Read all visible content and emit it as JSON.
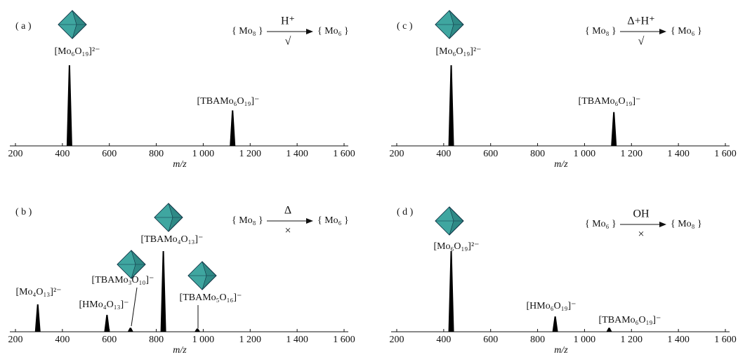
{
  "chart_data": [
    {
      "type": "spectrum",
      "panel": "( a )",
      "scheme": {
        "from": "{ Mo₈ }",
        "above": "H⁺",
        "below": "√",
        "to": "{ Mo₆ }"
      },
      "x": [
        430,
        1125
      ],
      "values": [
        100,
        44
      ],
      "labels": [
        "[Mo₆O₁₉]²⁻",
        "[TBAMo₆O₁₉]⁻"
      ],
      "xlim": [
        200,
        1600
      ],
      "ylim": [
        0,
        100
      ],
      "xlabel": "m/z",
      "xticks": [
        200,
        400,
        600,
        800,
        {
          "value": 1000,
          "label": "1 000"
        },
        {
          "value": 1200,
          "label": "1 200"
        },
        {
          "value": 1400,
          "label": "1 400"
        },
        {
          "value": 1600,
          "label": "1 600"
        }
      ]
    },
    {
      "type": "spectrum",
      "panel": "( b )",
      "scheme": {
        "from": "{ Mo₈ }",
        "above": "Δ",
        "below": "×",
        "to": "{ Mo₆ }"
      },
      "x": [
        295,
        590,
        690,
        830,
        975
      ],
      "values": [
        34,
        21,
        5,
        100,
        4
      ],
      "labels": [
        "[Mo₄O₁₃]²⁻",
        "[HMo₄O₁₃]⁻",
        "[TBAMo₃O₁₀]⁻",
        "[TBAMo₄O₁₃]⁻",
        "[TBAMo₅O₁₆]⁻"
      ],
      "xlim": [
        200,
        1600
      ],
      "ylim": [
        0,
        100
      ],
      "xlabel": "m/z",
      "xticks": [
        200,
        400,
        600,
        800,
        {
          "value": 1000,
          "label": "1 000"
        },
        {
          "value": 1200,
          "label": "1 200"
        },
        {
          "value": 1400,
          "label": "1 400"
        },
        {
          "value": 1600,
          "label": "1 600"
        }
      ]
    },
    {
      "type": "spectrum",
      "panel": "( c )",
      "scheme": {
        "from": "{ Mo₈ }",
        "above": "Δ+H⁺",
        "below": "√",
        "to": "{ Mo₆ }"
      },
      "x": [
        432,
        1125
      ],
      "values": [
        100,
        42
      ],
      "labels": [
        "[Mo₆O₁₉]²⁻",
        "[TBAMo₆O₁₉]⁻"
      ],
      "xlim": [
        200,
        1600
      ],
      "ylim": [
        0,
        100
      ],
      "xlabel": "m/z",
      "xticks": [
        200,
        400,
        600,
        800,
        {
          "value": 1000,
          "label": "1 000"
        },
        {
          "value": 1200,
          "label": "1 200"
        },
        {
          "value": 1400,
          "label": "1 400"
        },
        {
          "value": 1600,
          "label": "1 600"
        }
      ]
    },
    {
      "type": "spectrum",
      "panel": "( d )",
      "scheme": {
        "from": "{ Mo₆ }",
        "above": "OH",
        "below": "×",
        "to": "{ Mo₈ }"
      },
      "x": [
        432,
        875,
        1105
      ],
      "values": [
        100,
        19,
        5
      ],
      "labels": [
        "[Mo₆O₁₉]²⁻",
        "[HMo₆O₁₉]⁻",
        "[TBAMo₆O₁₉]⁻"
      ],
      "xlim": [
        200,
        1600
      ],
      "ylim": [
        0,
        100
      ],
      "xlabel": "m/z",
      "xticks": [
        200,
        400,
        600,
        800,
        {
          "value": 1000,
          "label": "1 000"
        },
        {
          "value": 1200,
          "label": "1 200"
        },
        {
          "value": 1400,
          "label": "1 400"
        },
        {
          "value": 1600,
          "label": "1 600"
        }
      ]
    }
  ]
}
